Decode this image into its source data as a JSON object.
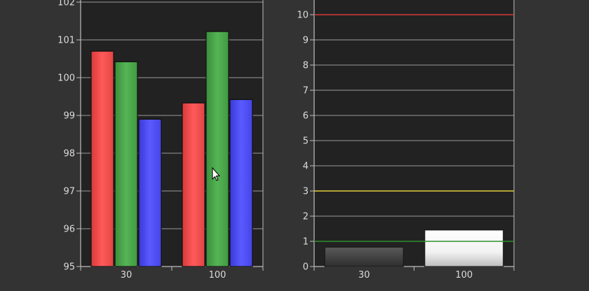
{
  "chart_data": [
    {
      "type": "bar",
      "categories": [
        "30",
        "100"
      ],
      "series": [
        {
          "color": "#ff4c4c",
          "values": [
            100.7,
            99.33
          ]
        },
        {
          "color": "#4ca64c",
          "values": [
            100.42,
            101.22
          ]
        },
        {
          "color": "#4c4cff",
          "values": [
            98.9,
            99.42
          ]
        }
      ],
      "ylim": [
        95,
        102
      ],
      "yticks": [
        "95",
        "96",
        "97",
        "98",
        "99",
        "100",
        "101",
        "102"
      ],
      "grid": true
    },
    {
      "type": "bar",
      "categories": [
        "30",
        "100"
      ],
      "values": [
        0.77,
        1.45
      ],
      "bar_colors": [
        "#4a4a4a",
        "#f2f2f2"
      ],
      "ylim": [
        0,
        10
      ],
      "yticks": [
        "0",
        "1",
        "2",
        "3",
        "4",
        "5",
        "6",
        "7",
        "8",
        "9",
        "10"
      ],
      "grid": true,
      "reference_lines": [
        {
          "value": 10,
          "color": "#d23a3a"
        },
        {
          "value": 3,
          "color": "#e0cf3a"
        },
        {
          "value": 1,
          "color": "#2f8f2f"
        }
      ]
    }
  ],
  "cursor": {
    "name": "mouse-pointer-icon"
  },
  "colors": {
    "background": "#333333",
    "plot_area": "#222222",
    "grid": "#9a9a9a",
    "axis": "#bdbdbd",
    "text": "#dcdcdc"
  }
}
